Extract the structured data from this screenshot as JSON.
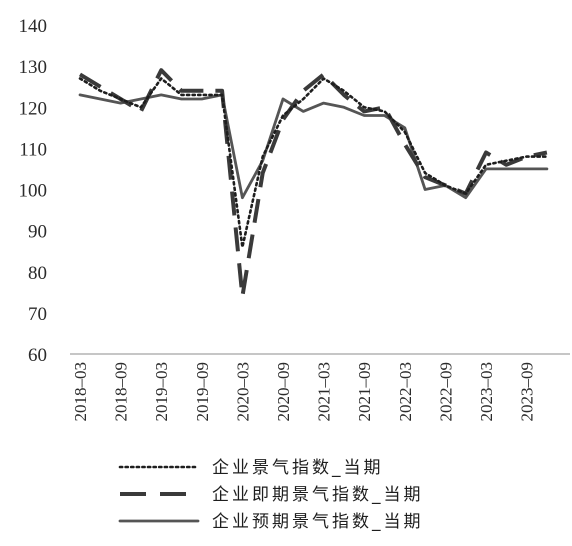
{
  "chart_data": {
    "type": "line",
    "y_axis": {
      "ylim": [
        60,
        140
      ],
      "ticks": [
        60,
        70,
        80,
        90,
        100,
        110,
        120,
        130,
        140
      ]
    },
    "x_tick_labels": [
      "2018–03",
      "2018–09",
      "2019–03",
      "2019–09",
      "2020–03",
      "2020–09",
      "2021–03",
      "2021–09",
      "2022–03",
      "2022–09",
      "2023–03",
      "2023–09"
    ],
    "quarters": [
      "2018Q1",
      "2018Q2",
      "2018Q3",
      "2018Q4",
      "2019Q1",
      "2019Q2",
      "2019Q3",
      "2019Q4",
      "2020Q1",
      "2020Q2",
      "2020Q3",
      "2020Q4",
      "2021Q1",
      "2021Q2",
      "2021Q3",
      "2021Q4",
      "2022Q1",
      "2022Q2",
      "2022Q3",
      "2022Q4",
      "2023Q1",
      "2023Q2",
      "2023Q3",
      "2023Q4"
    ],
    "series": [
      {
        "name": "企业景气指数_当期",
        "style": "dotted",
        "values": [
          127,
          124,
          122,
          120,
          127,
          123,
          123,
          123,
          86,
          108,
          118,
          122,
          127,
          124,
          120,
          119,
          114,
          104,
          101,
          99,
          106,
          107,
          108,
          108
        ]
      },
      {
        "name": "企业即期景气指数_当期",
        "style": "dashed",
        "values": [
          128,
          125,
          122,
          119,
          129,
          124,
          124,
          124,
          74,
          104,
          117,
          124,
          128,
          123,
          119,
          120,
          111,
          103,
          101,
          99,
          109,
          106,
          108,
          109
        ]
      },
      {
        "name": "企业预期景气指数_当期",
        "style": "solid",
        "values": [
          123,
          122,
          121,
          122,
          123,
          122,
          122,
          123,
          98,
          107,
          122,
          119,
          121,
          120,
          118,
          118,
          115,
          100,
          101,
          98,
          105,
          105,
          105,
          105
        ]
      }
    ],
    "legend_position": "bottom",
    "grid": false
  }
}
